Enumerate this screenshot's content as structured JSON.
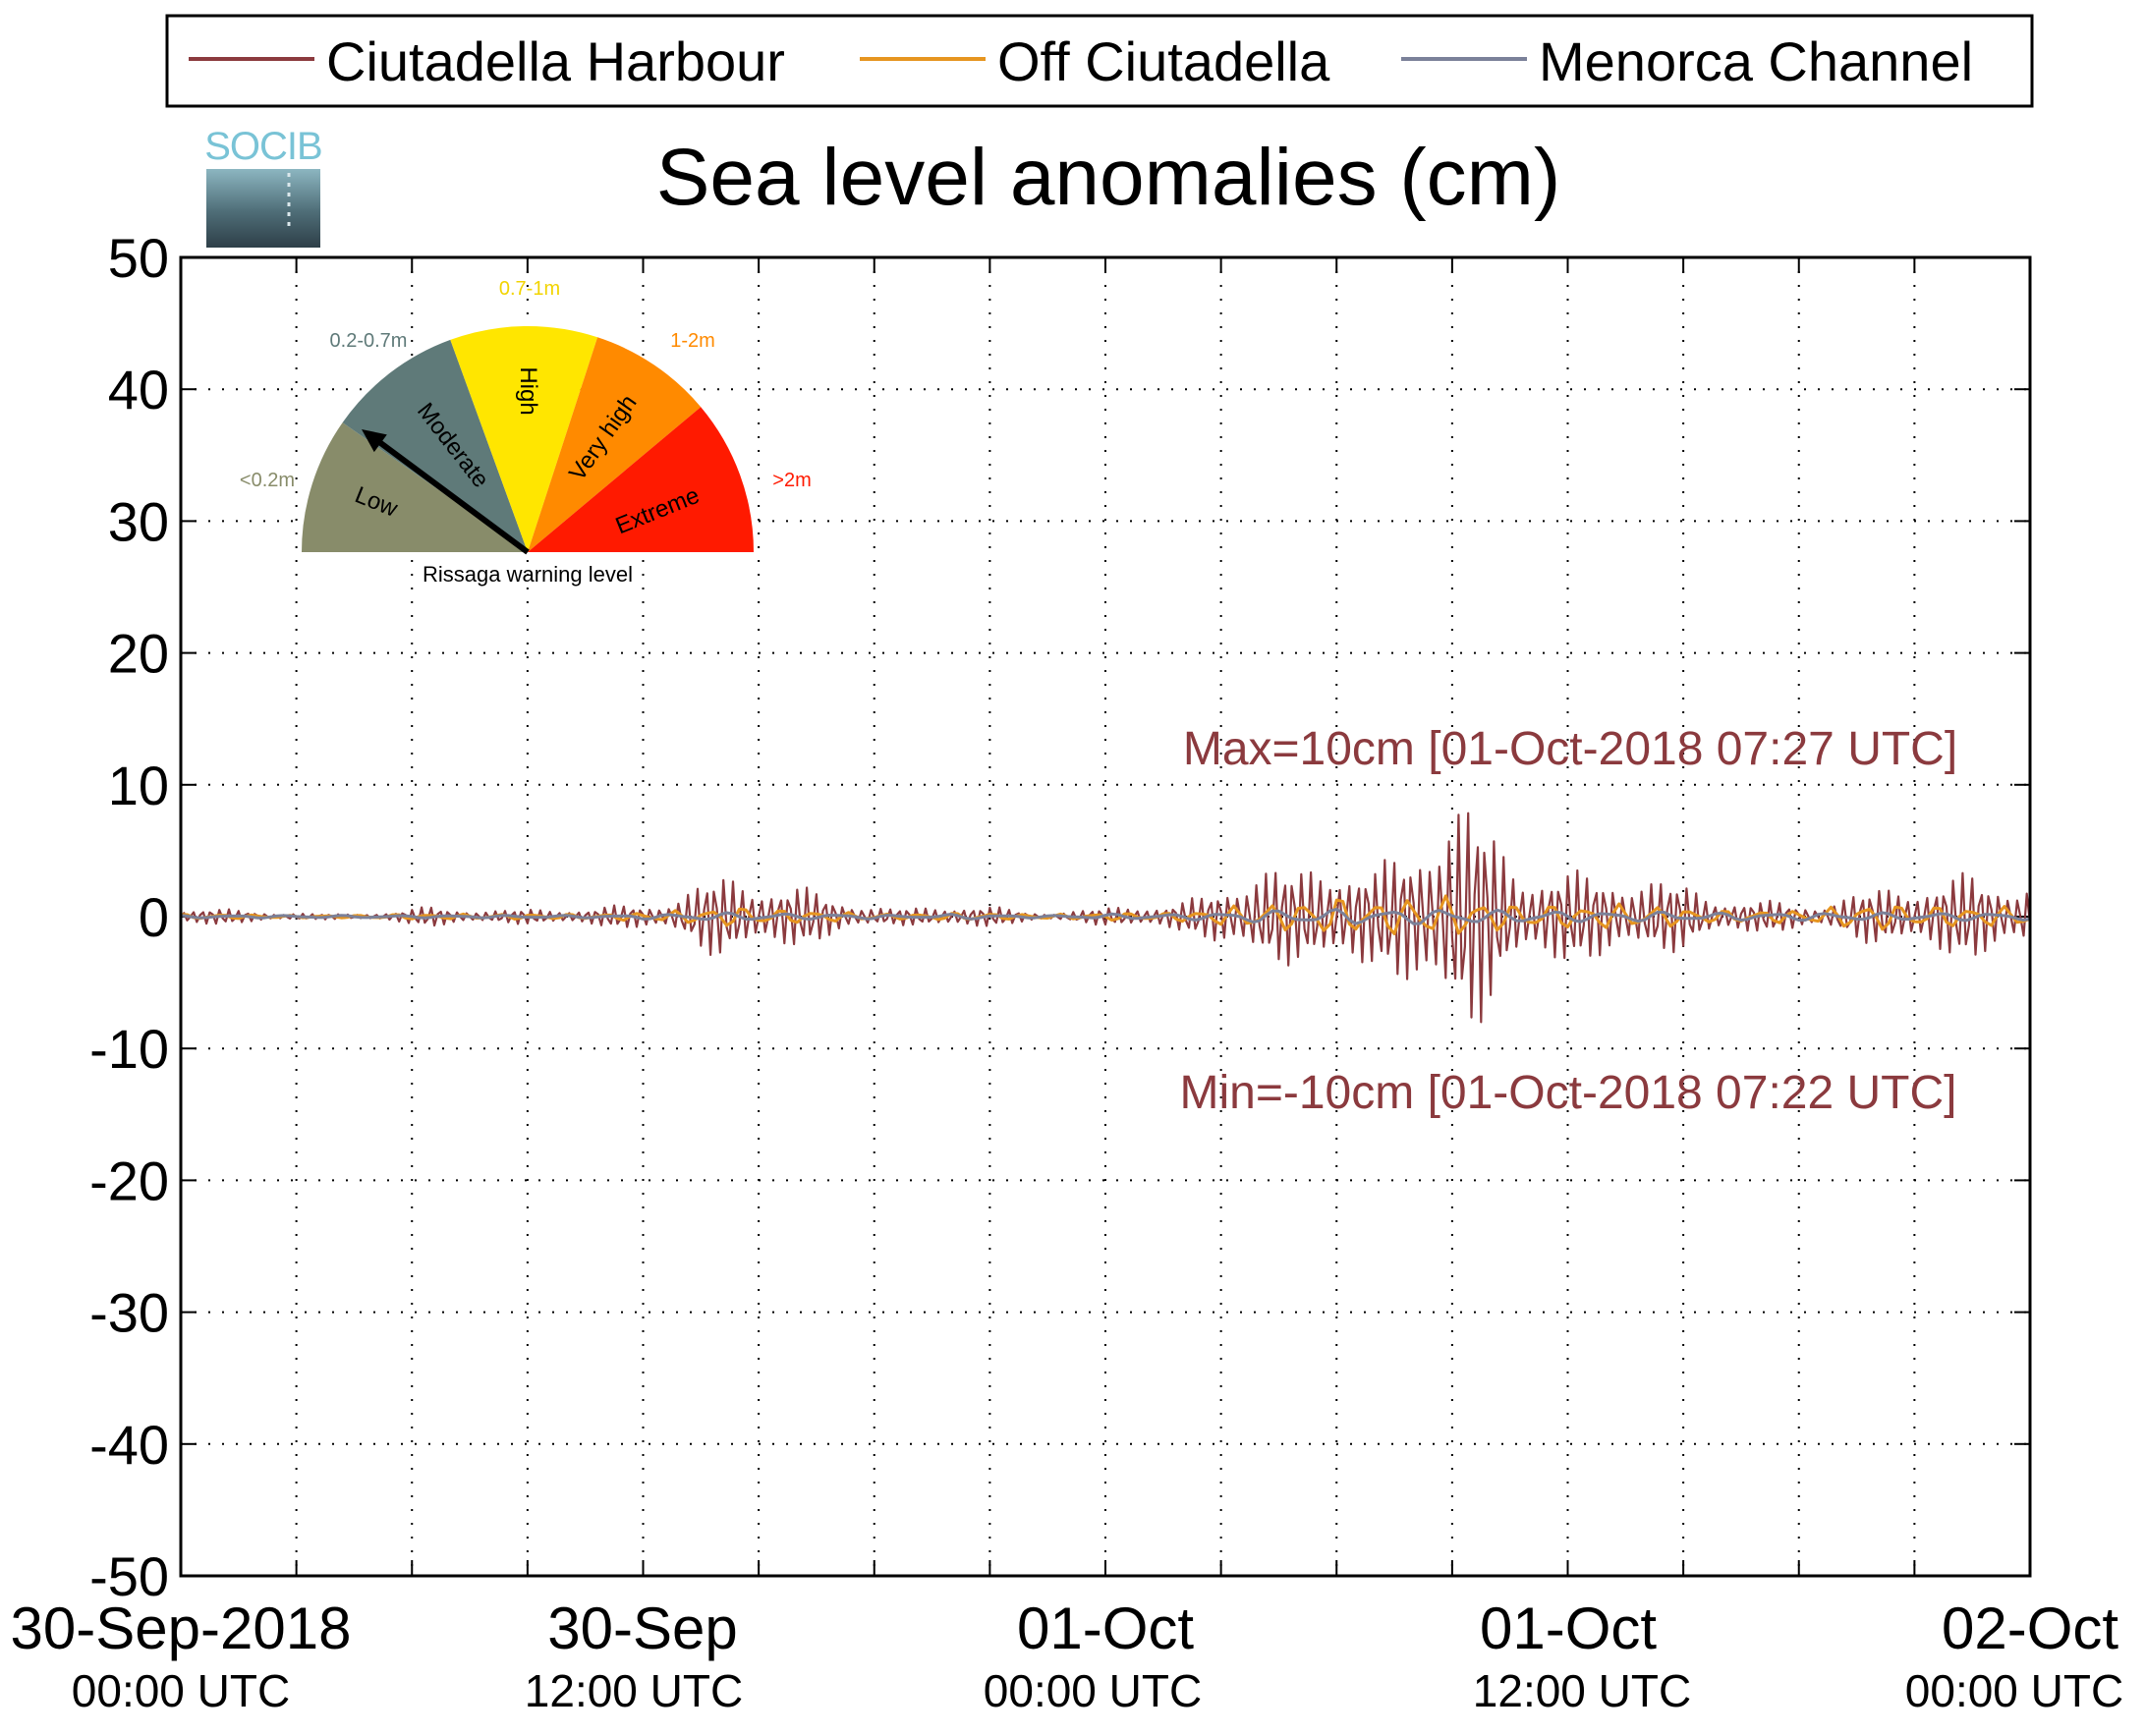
{
  "logo": {
    "text": "SOCIB"
  },
  "chart_data": {
    "type": "line",
    "title": "Sea level anomalies (cm)",
    "xlabel": "",
    "ylabel": "",
    "ylim": [
      -50,
      50
    ],
    "yticks": [
      50,
      40,
      30,
      20,
      10,
      0,
      -10,
      -20,
      -30,
      -40,
      -50
    ],
    "xlim": [
      "2018-09-30T00:00",
      "2018-10-02T00:00"
    ],
    "xtick_labels": [
      {
        "date": "30-Sep-2018",
        "time": "00:00 UTC"
      },
      {
        "date": "30-Sep",
        "time": "12:00 UTC"
      },
      {
        "date": "01-Oct",
        "time": "00:00 UTC"
      },
      {
        "date": "01-Oct",
        "time": "12:00 UTC"
      },
      {
        "date": "02-Oct",
        "time": "00:00 UTC"
      }
    ],
    "grid": true,
    "legend_position": "top",
    "series": [
      {
        "name": "Ciutadella Harbour",
        "color": "#8b3a3e",
        "sample_interval_hours": 0.5,
        "envelope_amplitude": [
          0.7,
          0.7,
          0.6,
          0.5,
          0.4,
          0.3,
          0.3,
          0.2,
          0.2,
          0.2,
          0.3,
          0.4,
          0.6,
          0.8,
          0.7,
          0.6,
          0.5,
          0.5,
          0.6,
          0.6,
          0.7,
          0.6,
          0.8,
          0.9,
          1.0,
          1.2,
          1.8,
          2.6,
          3.2,
          3.4,
          3.0,
          2.6,
          2.4,
          2.0,
          1.6,
          1.2,
          0.8,
          0.6,
          0.7,
          0.8,
          1.0,
          0.9,
          0.8,
          0.6,
          0.4,
          0.3,
          0.4,
          0.5,
          0.7,
          0.9,
          1.0,
          0.9,
          1.2,
          1.6,
          2.6,
          3.6,
          4.2,
          3.8,
          3.6,
          4.5,
          5.2,
          4.6,
          3.8,
          4.8,
          6.5,
          9.0,
          10.0,
          9.0,
          7.0,
          5.0,
          4.2,
          4.0,
          3.6,
          3.4,
          3.8,
          3.6,
          3.2,
          2.8,
          2.6,
          2.0,
          1.6,
          1.4,
          1.2,
          1.2,
          1.0,
          1.0,
          1.4,
          1.8,
          2.2,
          2.6,
          2.8,
          3.0,
          3.2,
          3.4,
          3.2,
          3.0,
          3.0
        ]
      },
      {
        "name": "Off Ciutadella",
        "color": "#e69520",
        "sample_interval_hours": 0.5,
        "envelope_amplitude": [
          0.2,
          0.2,
          0.2,
          0.15,
          0.15,
          0.1,
          0.1,
          0.1,
          0.1,
          0.1,
          0.15,
          0.2,
          0.2,
          0.2,
          0.2,
          0.2,
          0.2,
          0.2,
          0.2,
          0.2,
          0.2,
          0.2,
          0.2,
          0.3,
          0.3,
          0.4,
          0.5,
          0.6,
          0.7,
          0.8,
          0.7,
          0.6,
          0.5,
          0.5,
          0.4,
          0.3,
          0.3,
          0.2,
          0.2,
          0.3,
          0.3,
          0.3,
          0.3,
          0.2,
          0.2,
          0.2,
          0.2,
          0.2,
          0.3,
          0.3,
          0.3,
          0.3,
          0.4,
          0.5,
          0.7,
          0.9,
          1.0,
          1.0,
          1.2,
          1.4,
          1.6,
          1.4,
          1.2,
          1.4,
          1.6,
          1.6,
          1.6,
          1.4,
          1.2,
          1.0,
          1.0,
          1.0,
          0.9,
          0.9,
          1.0,
          1.0,
          0.9,
          0.8,
          0.7,
          0.6,
          0.5,
          0.5,
          0.5,
          0.5,
          0.5,
          0.6,
          0.8,
          1.0,
          1.1,
          1.0,
          0.9,
          0.9,
          0.8,
          0.8,
          0.8,
          0.8,
          0.8
        ]
      },
      {
        "name": "Menorca Channel",
        "color": "#7b8199",
        "sample_interval_hours": 0.5,
        "envelope_amplitude": [
          0.1,
          0.1,
          0.1,
          0.1,
          0.1,
          0.1,
          0.1,
          0.1,
          0.1,
          0.1,
          0.1,
          0.1,
          0.1,
          0.1,
          0.1,
          0.1,
          0.1,
          0.1,
          0.1,
          0.1,
          0.1,
          0.1,
          0.1,
          0.1,
          0.2,
          0.2,
          0.2,
          0.3,
          0.3,
          0.3,
          0.3,
          0.3,
          0.2,
          0.2,
          0.2,
          0.2,
          0.2,
          0.1,
          0.1,
          0.1,
          0.2,
          0.2,
          0.2,
          0.1,
          0.1,
          0.1,
          0.1,
          0.1,
          0.2,
          0.2,
          0.2,
          0.2,
          0.2,
          0.3,
          0.3,
          0.4,
          0.5,
          0.5,
          0.5,
          0.6,
          0.6,
          0.6,
          0.5,
          0.6,
          0.6,
          0.6,
          0.6,
          0.6,
          0.5,
          0.5,
          0.5,
          0.5,
          0.4,
          0.4,
          0.4,
          0.4,
          0.4,
          0.4,
          0.3,
          0.3,
          0.3,
          0.3,
          0.3,
          0.3,
          0.3,
          0.3,
          0.3,
          0.3,
          0.3,
          0.3,
          0.3,
          0.3,
          0.3,
          0.3,
          0.3,
          0.3,
          0.3
        ]
      }
    ],
    "annotations": [
      {
        "text": "Max=10cm [01-Oct-2018 07:27 UTC]",
        "color": "#8b3a3e",
        "x": "2018-10-01T07:27",
        "y": 10
      },
      {
        "text": "Min=-10cm [01-Oct-2018 07:22 UTC]",
        "color": "#8b3a3e",
        "x": "2018-10-01T07:22",
        "y": -10
      }
    ]
  },
  "gauge": {
    "caption": "Rissaga warning level",
    "needle_level": "Moderate",
    "levels": [
      {
        "name": "Low",
        "range": "<0.2m",
        "color": "#888c6a",
        "range_color": "#888c6a"
      },
      {
        "name": "Moderate",
        "range": "0.2-0.7m",
        "color": "#5f7a79",
        "range_color": "#5f7a79"
      },
      {
        "name": "High",
        "range": "0.7-1m",
        "color": "#ffe600",
        "range_color": "#f2d400"
      },
      {
        "name": "Very high",
        "range": "1-2m",
        "color": "#ff8a00",
        "range_color": "#ff8a00"
      },
      {
        "name": "Extreme",
        "range": ">2m",
        "color": "#ff1a00",
        "range_color": "#ff1a00"
      }
    ]
  }
}
